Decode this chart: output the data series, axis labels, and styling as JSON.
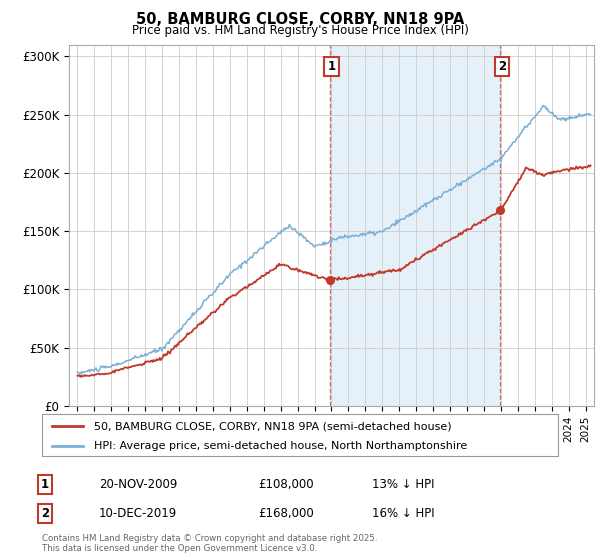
{
  "title": "50, BAMBURG CLOSE, CORBY, NN18 9PA",
  "subtitle": "Price paid vs. HM Land Registry's House Price Index (HPI)",
  "ylabel_ticks": [
    "£0",
    "£50K",
    "£100K",
    "£150K",
    "£200K",
    "£250K",
    "£300K"
  ],
  "ytick_values": [
    0,
    50000,
    100000,
    150000,
    200000,
    250000,
    300000
  ],
  "ylim": [
    0,
    310000
  ],
  "xlim_start": 1994.5,
  "xlim_end": 2025.5,
  "sale1_x": 2009.9,
  "sale1_y": 108000,
  "sale1_label": "1",
  "sale2_x": 2019.95,
  "sale2_y": 168000,
  "sale2_label": "2",
  "hpi_color": "#7bafd4",
  "price_color": "#c0392b",
  "annotation_box_color": "#c0392b",
  "vline_color": "#c0392b",
  "shading_color": "#dbeaf7",
  "background_color": "#ffffff",
  "grid_color": "#cccccc",
  "legend_label_price": "50, BAMBURG CLOSE, CORBY, NN18 9PA (semi-detached house)",
  "legend_label_hpi": "HPI: Average price, semi-detached house, North Northamptonshire",
  "note1_num": "1",
  "note1_date": "20-NOV-2009",
  "note1_price": "£108,000",
  "note1_pct": "13% ↓ HPI",
  "note2_num": "2",
  "note2_date": "10-DEC-2019",
  "note2_price": "£168,000",
  "note2_pct": "16% ↓ HPI",
  "copyright": "Contains HM Land Registry data © Crown copyright and database right 2025.\nThis data is licensed under the Open Government Licence v3.0."
}
